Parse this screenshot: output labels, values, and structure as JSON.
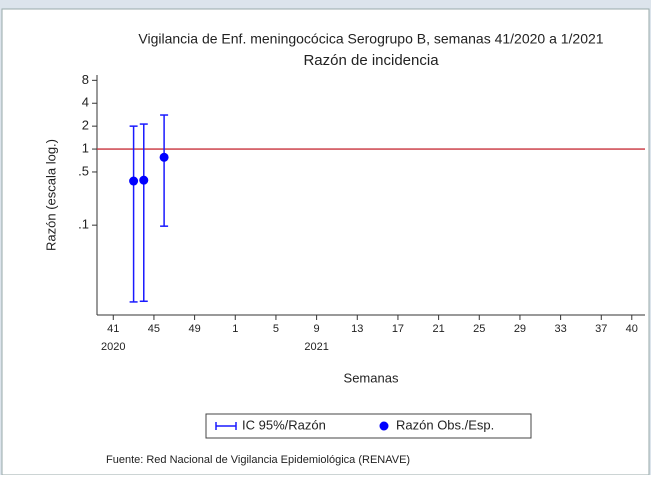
{
  "chart_data": {
    "type": "errorbar_scatter",
    "title": "Vigilancia de Enf. meningocócica Serogrupo B, semanas 41/2020 a 1/2021",
    "subtitle": "Razón de incidencia",
    "y_label": "Razón (escala log.)",
    "x_label": "Semanas",
    "source": "Fuente: Red Nacional de Vigilancia Epidemiológica (RENAVE)",
    "log_y": true,
    "ylim": [
      0.0066,
      9.4
    ],
    "yticks": [
      8,
      4,
      2,
      1,
      {
        "value": 0.5,
        "label": ".5"
      },
      {
        "value": 0.1,
        "label": ".1"
      }
    ],
    "xlim": [
      -1.6,
      52.3
    ],
    "xticks": [
      {
        "value": 0,
        "label": "41"
      },
      {
        "value": 4,
        "label": "45"
      },
      {
        "value": 8,
        "label": "49"
      },
      {
        "value": 12,
        "label": "1"
      },
      {
        "value": 16,
        "label": "5"
      },
      {
        "value": 20,
        "label": "9"
      },
      {
        "value": 24,
        "label": "13"
      },
      {
        "value": 28,
        "label": "17"
      },
      {
        "value": 32,
        "label": "21"
      },
      {
        "value": 36,
        "label": "25"
      },
      {
        "value": 40,
        "label": "29"
      },
      {
        "value": 44,
        "label": "33"
      },
      {
        "value": 48,
        "label": "37"
      },
      {
        "value": 51,
        "label": "40"
      }
    ],
    "x_group_labels": [
      {
        "value": 0,
        "label": "2020"
      },
      {
        "value": 20,
        "label": "2021"
      }
    ],
    "reference_line": {
      "value": 1,
      "color": "#c8323c"
    },
    "x": [
      2,
      3,
      5
    ],
    "ci": {
      "name": "IC 95%/Razón",
      "color": "#1a1aff",
      "lower": [
        0.0098,
        0.01,
        0.097
      ],
      "upper": [
        2.0,
        2.13,
        2.8
      ]
    },
    "points": {
      "name": "Razón Obs./Esp.",
      "color": "#0000ff",
      "values": [
        0.38,
        0.39,
        0.78
      ]
    }
  }
}
